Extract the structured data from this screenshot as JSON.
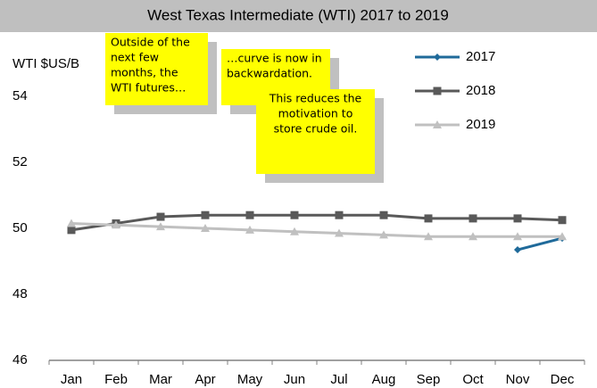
{
  "chart_data": {
    "type": "line",
    "title": "West Texas Intermediate (WTI) 2017 to 2019",
    "y_label": "WTI $US/B",
    "categories": [
      "Jan",
      "Feb",
      "Mar",
      "Apr",
      "May",
      "Jun",
      "Jul",
      "Aug",
      "Sep",
      "Oct",
      "Nov",
      "Dec"
    ],
    "series": [
      {
        "name": "2017",
        "color": "#1f6a9a",
        "marker": "diamond",
        "values": [
          null,
          null,
          null,
          null,
          null,
          null,
          null,
          null,
          null,
          null,
          49.35,
          49.7
        ]
      },
      {
        "name": "2018",
        "color": "#595959",
        "marker": "square",
        "values": [
          49.95,
          50.15,
          50.35,
          50.4,
          50.4,
          50.4,
          50.4,
          50.4,
          50.3,
          50.3,
          50.3,
          50.25
        ]
      },
      {
        "name": "2019",
        "color": "#c0c0c0",
        "marker": "triangle",
        "values": [
          50.15,
          50.1,
          50.05,
          50.0,
          49.95,
          49.9,
          49.85,
          49.8,
          49.75,
          49.75,
          49.75,
          49.75
        ]
      }
    ],
    "ylim": [
      46,
      56
    ],
    "yticks": [
      46,
      48,
      50,
      52,
      54
    ],
    "grid": false,
    "legend": "upper right",
    "annotations": [
      {
        "lines": [
          "Outside of the",
          "next few",
          "months, the",
          "WTI futures…"
        ]
      },
      {
        "lines": [
          "…curve is now in",
          "backwardation."
        ]
      },
      {
        "lines": [
          "This reduces the",
          "motivation to",
          "store crude oil."
        ]
      }
    ]
  }
}
